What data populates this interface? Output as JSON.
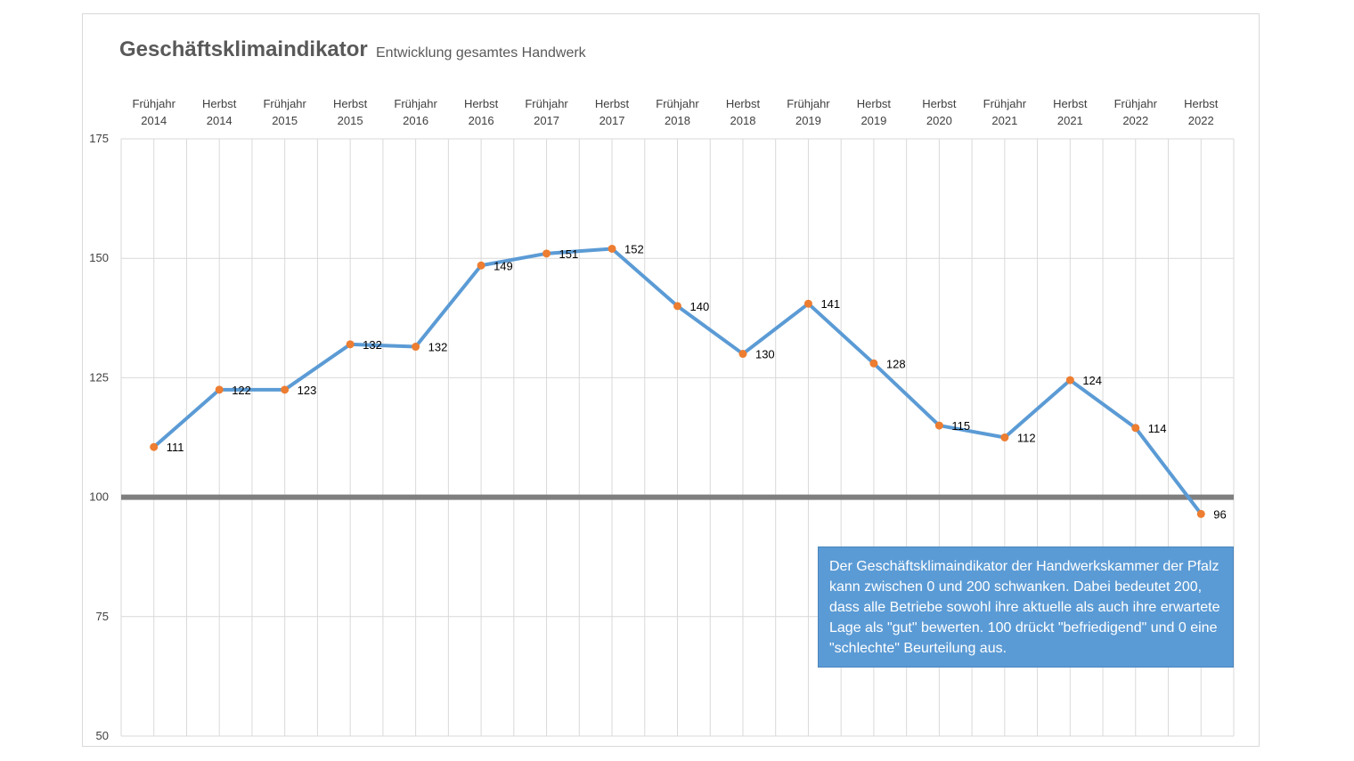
{
  "chart_data": {
    "type": "line",
    "title": "Geschäftsklimaindikator",
    "subtitle": "Entwicklung gesamtes Handwerk",
    "categories": [
      [
        "Frühjahr",
        "2014"
      ],
      [
        "Herbst",
        "2014"
      ],
      [
        "Frühjahr",
        "2015"
      ],
      [
        "Herbst",
        "2015"
      ],
      [
        "Frühjahr",
        "2016"
      ],
      [
        "Herbst",
        "2016"
      ],
      [
        "Frühjahr",
        "2017"
      ],
      [
        "Herbst",
        "2017"
      ],
      [
        "Frühjahr",
        "2018"
      ],
      [
        "Herbst",
        "2018"
      ],
      [
        "Frühjahr",
        "2019"
      ],
      [
        "Herbst",
        "2019"
      ],
      [
        "Herbst",
        "2020"
      ],
      [
        "Frühjahr",
        "2021"
      ],
      [
        "Herbst",
        "2021"
      ],
      [
        "Frühjahr",
        "2022"
      ],
      [
        "Herbst",
        "2022"
      ]
    ],
    "series": [
      {
        "values": [
          110.5,
          122.5,
          122.5,
          132,
          131.5,
          148.5,
          151,
          152,
          140,
          130,
          140.5,
          128,
          115,
          112.5,
          124.5,
          114.5,
          96.5
        ],
        "labels": [
          "111",
          "122",
          "123",
          "132",
          "132",
          "149",
          "151",
          "152",
          "140",
          "130",
          "141",
          "128",
          "115",
          "112",
          "124",
          "114",
          "96"
        ],
        "line_color": "#5b9bd5",
        "marker_color": "#ed7d31"
      }
    ],
    "reference_line": {
      "value": 100,
      "color": "#7f7f7f"
    },
    "ylim": [
      50,
      175
    ],
    "yticks": [
      50,
      75,
      100,
      125,
      150,
      175
    ],
    "grid": true,
    "legend": "none",
    "xlabel": "",
    "ylabel": ""
  },
  "note": "Der Geschäftsklimaindikator der Handwerkskammer der Pfalz kann zwischen 0 und 200 schwanken. Dabei bedeutet 200, dass alle Betriebe sowohl ihre aktuelle als auch ihre erwartete Lage als \"gut\" bewerten. 100 drückt \"befriedigend\" und 0 eine \"schlechte\" Beurteilung aus."
}
